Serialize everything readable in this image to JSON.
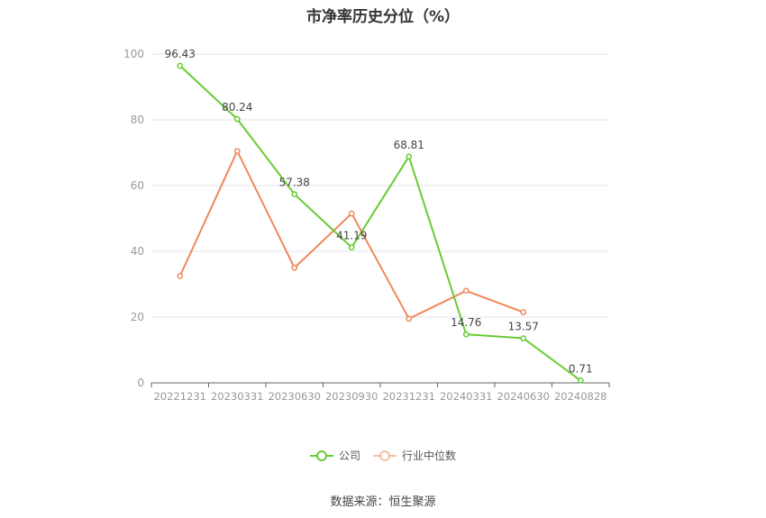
{
  "title": "市净率历史分位（%）",
  "source": "数据来源：恒生聚源",
  "colors": {
    "company": "#66cc33",
    "industry": "#f0885a",
    "grid": "#e3e3ee",
    "axis": "#999999",
    "label": "#444444"
  },
  "chart_data": {
    "type": "line",
    "title": "市净率历史分位（%）",
    "xlabel": "",
    "ylabel": "",
    "ylim": [
      0,
      100
    ],
    "yticks": [
      0,
      20,
      40,
      60,
      80,
      100
    ],
    "grid": true,
    "legend_position": "bottom",
    "categories": [
      "20221231",
      "20230331",
      "20230630",
      "20230930",
      "20231231",
      "20240331",
      "20240630",
      "20240828"
    ],
    "series": [
      {
        "name": "公司",
        "color": "#66cc33",
        "values": [
          96.43,
          80.24,
          57.38,
          41.19,
          68.81,
          14.76,
          13.57,
          0.71
        ],
        "data_labels": [
          "96.43",
          "80.24",
          "57.38",
          "41.19",
          "68.81",
          "14.76",
          "13.57",
          "0.71"
        ]
      },
      {
        "name": "行业中位数",
        "color": "#f0885a",
        "values": [
          32.5,
          70.5,
          35,
          51.5,
          19.5,
          28,
          21.5,
          null
        ]
      }
    ]
  }
}
